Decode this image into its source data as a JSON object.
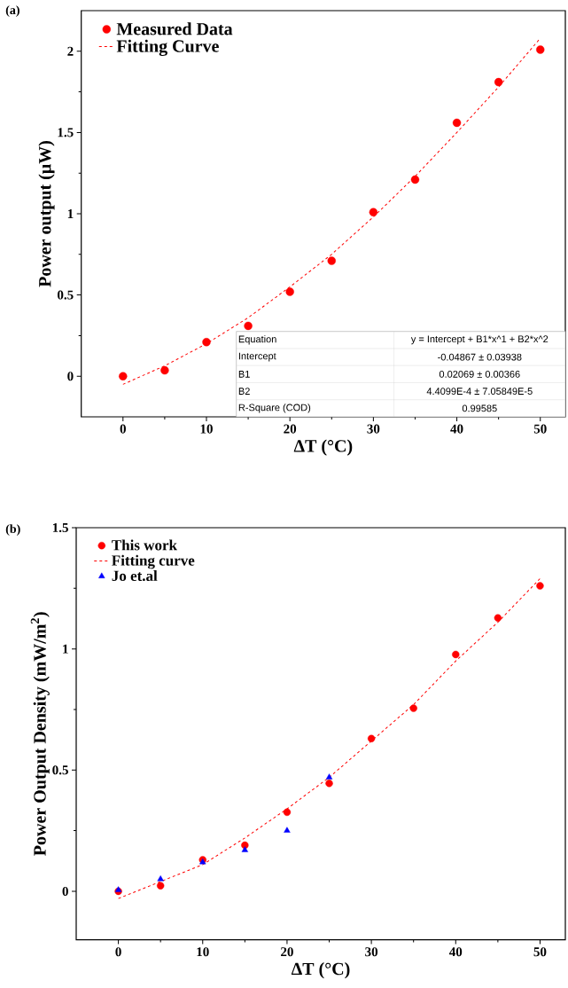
{
  "chart_data": [
    {
      "type": "scatter",
      "title": "(a)",
      "xlabel": "ΔT (°C)",
      "ylabel": "Power output (μW)",
      "xlim": [
        -5,
        53
      ],
      "ylim": [
        -0.25,
        2.25
      ],
      "xticks": [
        0,
        10,
        20,
        30,
        40,
        50
      ],
      "yticks": [
        0,
        0.5,
        1,
        1.5,
        2
      ],
      "legend": "top left",
      "x": [
        0,
        5,
        10,
        15,
        20,
        25,
        30,
        35,
        40,
        45,
        50
      ],
      "series": [
        {
          "name": "Measured Data",
          "marker": "circle",
          "color": "#ff0000",
          "values": [
            0,
            0.036,
            0.21,
            0.31,
            0.52,
            0.71,
            1.01,
            1.21,
            1.56,
            1.81,
            2.01
          ]
        },
        {
          "name": "Fitting Curve",
          "type": "line",
          "marker": "none",
          "line_style": "dashed",
          "color": "#ff0000",
          "values": [
            -0.05,
            0.064,
            0.2,
            0.36,
            0.55,
            0.75,
            0.98,
            1.23,
            1.5,
            1.78,
            2.08
          ]
        }
      ],
      "annotations": [
        "Equation",
        "y = Intercept + B1*x^1 + B2*x^2",
        "Intercept",
        "-0.04867 ± 0.03938",
        "B1",
        "0.02069 ± 0.00366",
        "B2",
        "4.4099E-4 ± 7.05849E-5",
        "R-Square (COD)",
        "0.99585"
      ]
    },
    {
      "type": "scatter",
      "title": "(b)",
      "xlabel": "ΔT (°C)",
      "ylabel": "Power Output Density (mW/m$^{2}$)",
      "xlim": [
        -5,
        53
      ],
      "ylim": [
        -0.2,
        1.5
      ],
      "xticks": [
        0,
        10,
        20,
        30,
        40,
        50
      ],
      "yticks": [
        0,
        0.5,
        1,
        1.5
      ],
      "legend": "top left",
      "x": [
        0,
        5,
        10,
        15,
        20,
        25,
        30,
        35,
        40,
        45,
        50
      ],
      "series": [
        {
          "name": "This work",
          "marker": "circle",
          "color": "#ff0000",
          "values": [
            0,
            0.023,
            0.13,
            0.19,
            0.326,
            0.445,
            0.63,
            0.755,
            0.977,
            1.128,
            1.26
          ]
        },
        {
          "name": "Fitting curve",
          "type": "line",
          "marker": "none",
          "line_style": "dashed",
          "color": "#ff0000",
          "values": [
            -0.03,
            0.04,
            0.11,
            0.22,
            0.34,
            0.47,
            0.62,
            0.77,
            0.95,
            1.11,
            1.29
          ]
        },
        {
          "name": "Jo et.al",
          "marker": "triangle",
          "color": "#0000ff",
          "x": [
            0,
            5,
            10,
            15,
            20,
            25
          ],
          "values": [
            0.005,
            0.05,
            0.12,
            0.17,
            0.25,
            0.47
          ]
        }
      ]
    }
  ]
}
